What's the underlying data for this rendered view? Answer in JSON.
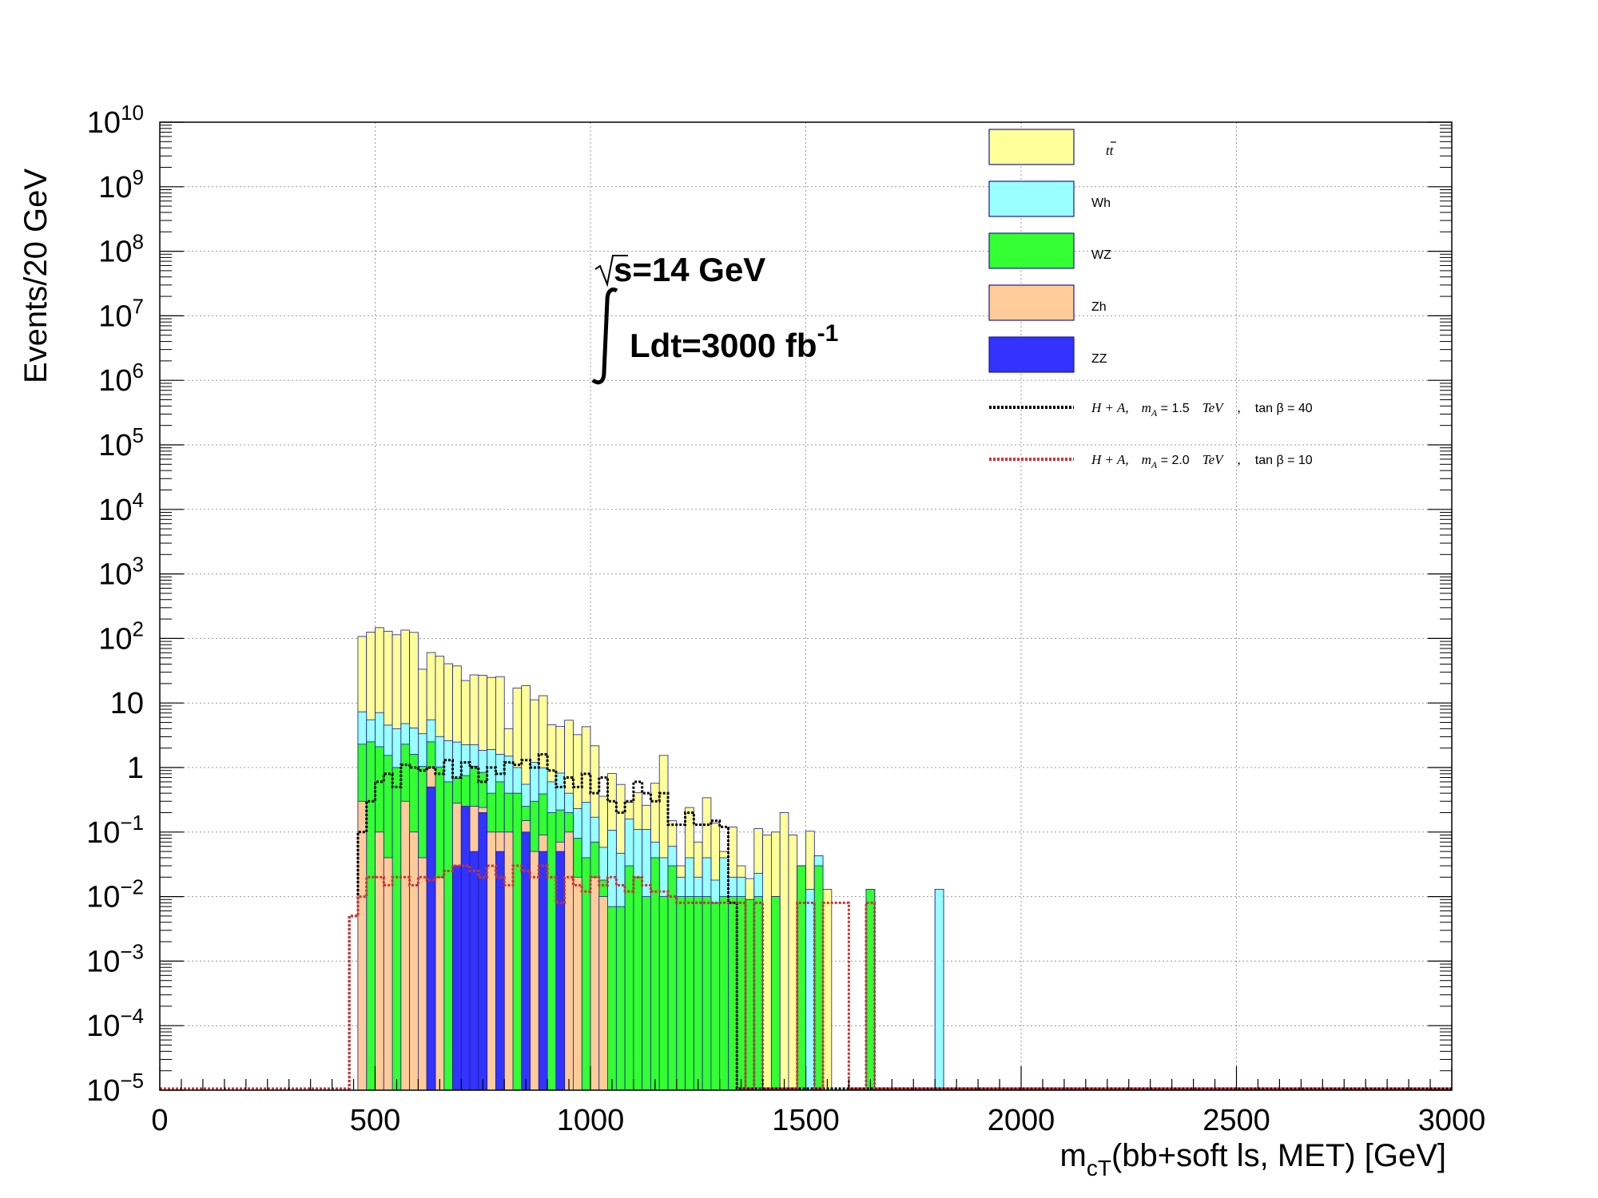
{
  "chart_data": {
    "type": "histogram",
    "xlabel": "m",
    "xlabel_sub": "cT",
    "xlabel_rest": "(bb+soft ls, MET) [GeV]",
    "ylabel": "Events/20 GeV",
    "xlim": [
      0,
      3000
    ],
    "ylim": [
      1e-05,
      10000000000.0
    ],
    "yscale": "log",
    "grid": true,
    "bin_width": 20,
    "x_ticks": [
      0,
      500,
      1000,
      1500,
      2000,
      2500,
      3000
    ],
    "y_ticks": [
      {
        "base": "10",
        "exp": "10",
        "value": 10000000000.0
      },
      {
        "base": "10",
        "exp": "9",
        "value": 1000000000.0
      },
      {
        "base": "10",
        "exp": "8",
        "value": 100000000.0
      },
      {
        "base": "10",
        "exp": "7",
        "value": 10000000.0
      },
      {
        "base": "10",
        "exp": "6",
        "value": 1000000.0
      },
      {
        "base": "10",
        "exp": "5",
        "value": 100000.0
      },
      {
        "base": "10",
        "exp": "4",
        "value": 10000.0
      },
      {
        "base": "10",
        "exp": "3",
        "value": 1000.0
      },
      {
        "base": "10",
        "exp": "2",
        "value": 100.0
      },
      {
        "base": "10",
        "exp": "",
        "value": 10
      },
      {
        "base": "1",
        "exp": "",
        "value": 1
      },
      {
        "base": "10",
        "exp": "−1",
        "value": 0.1
      },
      {
        "base": "10",
        "exp": "−2",
        "value": 0.01
      },
      {
        "base": "10",
        "exp": "−3",
        "value": 0.001
      },
      {
        "base": "10",
        "exp": "−4",
        "value": 0.0001
      },
      {
        "base": "10",
        "exp": "−5",
        "value": 1e-05
      }
    ],
    "annotations": {
      "sqrt_s": "s=14 GeV",
      "lumi_main": "Ldt=3000 fb",
      "lumi_exp": "-1"
    },
    "legend_placement": "top-right",
    "stack_order": [
      "ZZ",
      "Zh",
      "WZ",
      "Wh",
      "tt"
    ],
    "stacked_series": [
      {
        "name": "tt",
        "legend_label": "tt",
        "color": "#ffff99",
        "bins": [
          [
            460,
            100
          ],
          [
            480,
            120
          ],
          [
            500,
            140
          ],
          [
            520,
            125
          ],
          [
            540,
            110
          ],
          [
            560,
            130
          ],
          [
            580,
            120
          ],
          [
            600,
            30
          ],
          [
            620,
            55
          ],
          [
            640,
            50
          ],
          [
            660,
            38
          ],
          [
            680,
            35
          ],
          [
            700,
            20
          ],
          [
            720,
            25
          ],
          [
            740,
            25
          ],
          [
            760,
            23
          ],
          [
            780,
            24
          ],
          [
            800,
            2.5
          ],
          [
            820,
            16
          ],
          [
            840,
            18
          ],
          [
            860,
            10
          ],
          [
            880,
            12
          ],
          [
            900,
            4
          ],
          [
            920,
            3.5
          ],
          [
            940,
            5
          ],
          [
            960,
            3
          ],
          [
            980,
            4
          ],
          [
            1000,
            2
          ],
          [
            1020,
            0.3
          ],
          [
            1040,
            0.7
          ],
          [
            1060,
            0.5
          ],
          [
            1080,
            0.13
          ],
          [
            1100,
            0.3
          ],
          [
            1120,
            0.15
          ],
          [
            1140,
            0.5
          ],
          [
            1160,
            1.5
          ],
          [
            1180,
            0.09
          ],
          [
            1200,
            0.01
          ],
          [
            1220,
            0.2
          ],
          [
            1240,
            0.05
          ],
          [
            1260,
            0.3
          ],
          [
            1280,
            0.12
          ],
          [
            1300,
            0.01
          ],
          [
            1320,
            0.1
          ],
          [
            1340,
            0.01
          ],
          [
            1360,
            0.01
          ],
          [
            1380,
            0.09
          ],
          [
            1400,
            0.09
          ],
          [
            1420,
            0.09
          ],
          [
            1440,
            0.2
          ],
          [
            1460,
            0.09
          ],
          [
            1500,
            0.09
          ],
          [
            1540,
            0.013
          ]
        ]
      },
      {
        "name": "Wh",
        "legend_label": "Wh",
        "color": "#99ffff",
        "bins": [
          [
            460,
            5
          ],
          [
            480,
            3
          ],
          [
            500,
            5
          ],
          [
            520,
            3
          ],
          [
            540,
            3
          ],
          [
            560,
            2.5
          ],
          [
            580,
            2.5
          ],
          [
            600,
            2.3
          ],
          [
            620,
            3
          ],
          [
            640,
            2
          ],
          [
            660,
            2
          ],
          [
            680,
            1.8
          ],
          [
            700,
            1.5
          ],
          [
            720,
            1.2
          ],
          [
            740,
            1.0
          ],
          [
            760,
            1.5
          ],
          [
            780,
            1.0
          ],
          [
            800,
            1.1
          ],
          [
            820,
            0.6
          ],
          [
            840,
            0.3
          ],
          [
            860,
            0.9
          ],
          [
            880,
            0.6
          ],
          [
            900,
            0.4
          ],
          [
            920,
            0.6
          ],
          [
            940,
            0.2
          ],
          [
            960,
            0.15
          ],
          [
            980,
            0.25
          ],
          [
            1000,
            0.1
          ],
          [
            1020,
            0.04
          ],
          [
            1040,
            0.1
          ],
          [
            1060,
            0.04
          ],
          [
            1080,
            0.13
          ],
          [
            1100,
            0.09
          ],
          [
            1120,
            0.1
          ],
          [
            1140,
            0.03
          ],
          [
            1160,
            0.03
          ],
          [
            1180,
            0.03
          ],
          [
            1200,
            0.01
          ],
          [
            1220,
            0.03
          ],
          [
            1240,
            0.01
          ],
          [
            1260,
            0.03
          ],
          [
            1280,
            0.01
          ],
          [
            1300,
            0.03
          ],
          [
            1320,
            0.01
          ],
          [
            1340,
            0.01
          ],
          [
            1380,
            0.013
          ],
          [
            1500,
            0.013
          ],
          [
            1520,
            0.013
          ],
          [
            1800,
            0.013
          ]
        ]
      },
      {
        "name": "WZ",
        "legend_label": "WZ",
        "color": "#33ff33",
        "bins": [
          [
            460,
            2
          ],
          [
            480,
            2.5
          ],
          [
            500,
            2
          ],
          [
            520,
            1.5
          ],
          [
            540,
            1.0
          ],
          [
            560,
            2.0
          ],
          [
            580,
            1.5
          ],
          [
            600,
            1.0
          ],
          [
            620,
            1.5
          ],
          [
            640,
            1.0
          ],
          [
            660,
            0.6
          ],
          [
            680,
            0.4
          ],
          [
            700,
            0.5
          ],
          [
            720,
            0.8
          ],
          [
            740,
            0.6
          ],
          [
            760,
            0.3
          ],
          [
            780,
            0.5
          ],
          [
            800,
            0.3
          ],
          [
            820,
            0.4
          ],
          [
            840,
            0.1
          ],
          [
            860,
            0.25
          ],
          [
            880,
            0.3
          ],
          [
            900,
            0.2
          ],
          [
            920,
            0.15
          ],
          [
            940,
            0.1
          ],
          [
            960,
            0.06
          ],
          [
            980,
            0.04
          ],
          [
            1000,
            0.05
          ],
          [
            1020,
            0.008
          ],
          [
            1040,
            0.007
          ],
          [
            1060,
            0.007
          ],
          [
            1080,
            0.03
          ],
          [
            1100,
            0.02
          ],
          [
            1120,
            0.01
          ],
          [
            1140,
            0.04
          ],
          [
            1160,
            0.01
          ],
          [
            1180,
            0.03
          ],
          [
            1200,
            0.01
          ],
          [
            1220,
            0.01
          ],
          [
            1240,
            0.01
          ],
          [
            1260,
            0.01
          ],
          [
            1280,
            0.008
          ],
          [
            1300,
            0.01
          ],
          [
            1320,
            0.01
          ],
          [
            1340,
            0.01
          ],
          [
            1360,
            0.009
          ],
          [
            1380,
            0.01
          ],
          [
            1420,
            0.01
          ],
          [
            1480,
            0.03
          ],
          [
            1520,
            0.03
          ],
          [
            1640,
            0.013
          ]
        ]
      },
      {
        "name": "Zh",
        "legend_label": "Zh",
        "color": "#ffcc99",
        "bins": [
          [
            460,
            0.3
          ],
          [
            500,
            0.1
          ],
          [
            520,
            0.04
          ],
          [
            560,
            0.3
          ],
          [
            580,
            0.1
          ],
          [
            600,
            0.04
          ],
          [
            620,
            0.5
          ],
          [
            640,
            0.02
          ],
          [
            680,
            0.25
          ],
          [
            720,
            0.2
          ],
          [
            740,
            0.04
          ],
          [
            760,
            0.1
          ],
          [
            780,
            0.05
          ],
          [
            800,
            0.1
          ],
          [
            840,
            0.05
          ],
          [
            860,
            0.05
          ],
          [
            880,
            0.04
          ],
          [
            920,
            0.02
          ],
          [
            940,
            0.1
          ],
          [
            960,
            0.02
          ],
          [
            1000,
            0.02
          ],
          [
            1020,
            0.01
          ]
        ]
      },
      {
        "name": "ZZ",
        "legend_label": "ZZ",
        "color": "#3333ff",
        "bins": [
          [
            620,
            0.5
          ],
          [
            680,
            0.03
          ],
          [
            700,
            0.25
          ],
          [
            720,
            0.05
          ],
          [
            740,
            0.2
          ],
          [
            780,
            0.05
          ],
          [
            840,
            0.1
          ],
          [
            880,
            0.05
          ],
          [
            920,
            0.05
          ]
        ]
      }
    ],
    "signal_series": [
      {
        "name": "H+A, mA=1.5 TeV, tanβ=40",
        "legend_parts": [
          "H + A,",
          "m",
          "A",
          " = 1.5",
          "TeV",
          ",",
          "tan β = 40"
        ],
        "color": "#000000",
        "bins": [
          [
            440,
            0.005
          ],
          [
            460,
            0.1
          ],
          [
            480,
            0.3
          ],
          [
            500,
            0.6
          ],
          [
            520,
            0.8
          ],
          [
            540,
            0.5
          ],
          [
            560,
            1.1
          ],
          [
            580,
            1.0
          ],
          [
            600,
            0.9
          ],
          [
            620,
            1.0
          ],
          [
            640,
            0.8
          ],
          [
            660,
            1.3
          ],
          [
            680,
            0.7
          ],
          [
            700,
            1.2
          ],
          [
            720,
            1.0
          ],
          [
            740,
            0.6
          ],
          [
            760,
            1.0
          ],
          [
            780,
            0.8
          ],
          [
            800,
            1.2
          ],
          [
            820,
            1.1
          ],
          [
            840,
            1.3
          ],
          [
            860,
            1.0
          ],
          [
            880,
            1.6
          ],
          [
            900,
            0.9
          ],
          [
            920,
            0.5
          ],
          [
            940,
            0.7
          ],
          [
            960,
            0.5
          ],
          [
            980,
            0.8
          ],
          [
            1000,
            0.4
          ],
          [
            1020,
            0.7
          ],
          [
            1040,
            0.3
          ],
          [
            1060,
            0.2
          ],
          [
            1080,
            0.3
          ],
          [
            1100,
            0.6
          ],
          [
            1120,
            0.4
          ],
          [
            1140,
            0.3
          ],
          [
            1160,
            0.4
          ],
          [
            1180,
            0.13
          ],
          [
            1200,
            0.13
          ],
          [
            1220,
            0.2
          ],
          [
            1240,
            0.13
          ],
          [
            1260,
            0.13
          ],
          [
            1280,
            0.15
          ],
          [
            1300,
            0.12
          ],
          [
            1320,
            0.008
          ]
        ]
      },
      {
        "name": "H+A, mA=2.0 TeV, tanβ=10",
        "legend_parts": [
          "H + A,",
          "m",
          "A",
          " = 2.0",
          "TeV",
          ",",
          "tan β = 10"
        ],
        "color": "#cc3333",
        "bins": [
          [
            440,
            0.005
          ],
          [
            460,
            0.01
          ],
          [
            480,
            0.02
          ],
          [
            500,
            0.02
          ],
          [
            520,
            0.015
          ],
          [
            540,
            0.02
          ],
          [
            560,
            0.02
          ],
          [
            580,
            0.015
          ],
          [
            600,
            0.02
          ],
          [
            620,
            0.018
          ],
          [
            640,
            0.02
          ],
          [
            660,
            0.025
          ],
          [
            680,
            0.03
          ],
          [
            700,
            0.03
          ],
          [
            720,
            0.025
          ],
          [
            740,
            0.02
          ],
          [
            760,
            0.03
          ],
          [
            780,
            0.02
          ],
          [
            800,
            0.015
          ],
          [
            820,
            0.03
          ],
          [
            840,
            0.025
          ],
          [
            860,
            0.02
          ],
          [
            880,
            0.03
          ],
          [
            900,
            0.02
          ],
          [
            920,
            0.008
          ],
          [
            940,
            0.02
          ],
          [
            960,
            0.015
          ],
          [
            980,
            0.012
          ],
          [
            1000,
            0.02
          ],
          [
            1020,
            0.015
          ],
          [
            1040,
            0.02
          ],
          [
            1060,
            0.015
          ],
          [
            1080,
            0.012
          ],
          [
            1100,
            0.02
          ],
          [
            1120,
            0.015
          ],
          [
            1140,
            0.012
          ],
          [
            1160,
            0.012
          ],
          [
            1180,
            0.01
          ],
          [
            1200,
            0.008
          ],
          [
            1220,
            0.008
          ],
          [
            1240,
            0.008
          ],
          [
            1260,
            0.008
          ],
          [
            1280,
            0.008
          ],
          [
            1300,
            0.008
          ],
          [
            1320,
            0.008
          ],
          [
            1340,
            0.008
          ],
          [
            1380,
            0.008
          ],
          [
            1480,
            0.008
          ],
          [
            1500,
            0.008
          ],
          [
            1540,
            0.008
          ],
          [
            1560,
            0.008
          ],
          [
            1580,
            0.008
          ],
          [
            1640,
            0.008
          ]
        ]
      }
    ]
  }
}
